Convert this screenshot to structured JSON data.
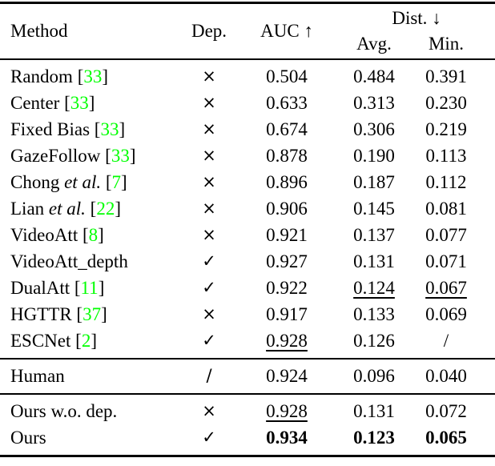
{
  "colors": {
    "citation_green": "#00FF00"
  },
  "header": {
    "method": "Method",
    "dep": "Dep.",
    "auc": "AUC ↑",
    "dist": "Dist. ↓",
    "avg": "Avg.",
    "min": "Min."
  },
  "sections": [
    {
      "name": "baselines-and-prior-work",
      "rows": [
        {
          "method": "Random",
          "etal": false,
          "cite": "33",
          "dep": "×",
          "values": [
            {
              "text": "0.504",
              "style": "normal"
            },
            {
              "text": "0.484",
              "style": "normal"
            },
            {
              "text": "0.391",
              "style": "normal"
            }
          ]
        },
        {
          "method": "Center",
          "etal": false,
          "cite": "33",
          "dep": "×",
          "values": [
            {
              "text": "0.633",
              "style": "normal"
            },
            {
              "text": "0.313",
              "style": "normal"
            },
            {
              "text": "0.230",
              "style": "normal"
            }
          ]
        },
        {
          "method": "Fixed Bias",
          "etal": false,
          "cite": "33",
          "dep": "×",
          "values": [
            {
              "text": "0.674",
              "style": "normal"
            },
            {
              "text": "0.306",
              "style": "normal"
            },
            {
              "text": "0.219",
              "style": "normal"
            }
          ]
        },
        {
          "method": "GazeFollow",
          "etal": false,
          "cite": "33",
          "dep": "×",
          "values": [
            {
              "text": "0.878",
              "style": "normal"
            },
            {
              "text": "0.190",
              "style": "normal"
            },
            {
              "text": "0.113",
              "style": "normal"
            }
          ]
        },
        {
          "method": "Chong",
          "etal": true,
          "cite": "7",
          "dep": "×",
          "values": [
            {
              "text": "0.896",
              "style": "normal"
            },
            {
              "text": "0.187",
              "style": "normal"
            },
            {
              "text": "0.112",
              "style": "normal"
            }
          ]
        },
        {
          "method": "Lian",
          "etal": true,
          "cite": "22",
          "dep": "×",
          "values": [
            {
              "text": "0.906",
              "style": "normal"
            },
            {
              "text": "0.145",
              "style": "normal"
            },
            {
              "text": "0.081",
              "style": "normal"
            }
          ]
        },
        {
          "method": "VideoAtt",
          "etal": false,
          "cite": "8",
          "dep": "×",
          "values": [
            {
              "text": "0.921",
              "style": "normal"
            },
            {
              "text": "0.137",
              "style": "normal"
            },
            {
              "text": "0.077",
              "style": "normal"
            }
          ]
        },
        {
          "method": "VideoAtt_depth",
          "etal": false,
          "cite": null,
          "dep": "✓",
          "values": [
            {
              "text": "0.927",
              "style": "normal"
            },
            {
              "text": "0.131",
              "style": "normal"
            },
            {
              "text": "0.071",
              "style": "normal"
            }
          ]
        },
        {
          "method": "DualAtt",
          "etal": false,
          "cite": "11",
          "dep": "✓",
          "values": [
            {
              "text": "0.922",
              "style": "normal"
            },
            {
              "text": "0.124",
              "style": "underline"
            },
            {
              "text": "0.067",
              "style": "underline"
            }
          ]
        },
        {
          "method": "HGTTR",
          "etal": false,
          "cite": "37",
          "dep": "×",
          "values": [
            {
              "text": "0.917",
              "style": "normal"
            },
            {
              "text": "0.133",
              "style": "normal"
            },
            {
              "text": "0.069",
              "style": "normal"
            }
          ]
        },
        {
          "method": "ESCNet",
          "etal": false,
          "cite": "2",
          "dep": "✓",
          "values": [
            {
              "text": "0.928",
              "style": "underline"
            },
            {
              "text": "0.126",
              "style": "normal"
            },
            {
              "text": "/",
              "style": "normal"
            }
          ]
        }
      ]
    },
    {
      "name": "human",
      "rows": [
        {
          "method": "Human",
          "etal": false,
          "cite": null,
          "dep": "/",
          "values": [
            {
              "text": "0.924",
              "style": "normal"
            },
            {
              "text": "0.096",
              "style": "normal"
            },
            {
              "text": "0.040",
              "style": "normal"
            }
          ]
        }
      ]
    },
    {
      "name": "ours",
      "rows": [
        {
          "method": "Ours w.o. dep.",
          "etal": false,
          "cite": null,
          "dep": "×",
          "values": [
            {
              "text": "0.928",
              "style": "underline"
            },
            {
              "text": "0.131",
              "style": "normal"
            },
            {
              "text": "0.072",
              "style": "normal"
            }
          ]
        },
        {
          "method": "Ours",
          "etal": false,
          "cite": null,
          "dep": "✓",
          "values": [
            {
              "text": "0.934",
              "style": "bold"
            },
            {
              "text": "0.123",
              "style": "bold"
            },
            {
              "text": "0.065",
              "style": "bold"
            }
          ]
        }
      ]
    }
  ]
}
